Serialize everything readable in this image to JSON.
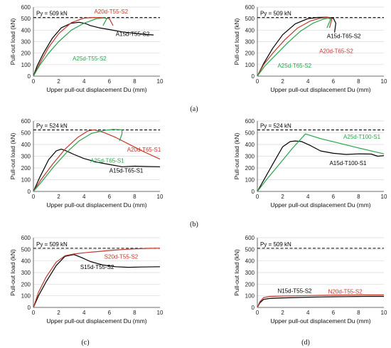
{
  "colors": {
    "black": "#000000",
    "red": "#c0392b",
    "green": "#27a44a",
    "grid": "#d9d9d9"
  },
  "row_labels": [
    "(a)",
    "(b)",
    "(c)",
    "(d)"
  ],
  "chart_data": [
    {
      "type": "line",
      "xlabel": "Upper pull-out displacement Du (mm)",
      "ylabel": "Pull-out load (kN)",
      "xlim": [
        0,
        10
      ],
      "ylim": [
        0,
        600
      ],
      "xticks": [
        0,
        2,
        4,
        6,
        8,
        10
      ],
      "yticks": [
        0,
        100,
        200,
        300,
        400,
        500,
        600
      ],
      "grid": true,
      "py_line": {
        "value": 509,
        "label": "Py = 509 kN"
      },
      "series": [
        {
          "name": "A15d-T55-S2",
          "color": "black",
          "x": [
            0,
            0.3,
            0.8,
            1.5,
            2.2,
            3.0,
            3.6,
            4.1,
            4.5,
            5.2,
            6.0,
            7.0,
            8.0,
            9.0,
            9.5
          ],
          "y": [
            0,
            90,
            200,
            330,
            420,
            460,
            468,
            458,
            440,
            420,
            405,
            385,
            372,
            362,
            358
          ]
        },
        {
          "name": "A20d-T55-S2",
          "color": "red",
          "x": [
            0,
            0.5,
            1.2,
            2.0,
            3.0,
            4.0,
            4.8,
            5.5,
            6.0,
            6.3
          ],
          "y": [
            0,
            110,
            250,
            370,
            465,
            505,
            510,
            508,
            500,
            440
          ]
        },
        {
          "name": "A25d-T55-S2",
          "color": "green",
          "x": [
            0,
            0.5,
            1.2,
            2.0,
            3.0,
            4.0,
            5.0,
            5.6,
            5.8,
            5.5
          ],
          "y": [
            0,
            95,
            200,
            300,
            400,
            460,
            500,
            507,
            500,
            440
          ]
        }
      ],
      "labels": [
        {
          "text": "A15d-T55-S2",
          "color": "black",
          "x": 6.5,
          "y": 350
        },
        {
          "text": "A20d-T55-S2",
          "color": "red",
          "x": 4.8,
          "y": 545
        },
        {
          "text": "A25d-T55-S2",
          "color": "green",
          "x": 3.1,
          "y": 135
        }
      ]
    },
    {
      "type": "line",
      "xlabel": "Upper pull-out displacement Du (mm)",
      "ylabel": "Pull-out load (kN)",
      "xlim": [
        0,
        10
      ],
      "ylim": [
        0,
        600
      ],
      "xticks": [
        0,
        2,
        4,
        6,
        8,
        10
      ],
      "yticks": [
        0,
        100,
        200,
        300,
        400,
        500,
        600
      ],
      "grid": true,
      "py_line": {
        "value": 509,
        "label": "Py = 509 kN"
      },
      "series": [
        {
          "name": "A15d-T65-S2",
          "color": "black",
          "x": [
            0,
            0.5,
            1.2,
            2.0,
            3.0,
            4.0,
            4.8,
            5.5,
            6.0,
            6.2,
            6.1
          ],
          "y": [
            0,
            110,
            240,
            360,
            455,
            500,
            510,
            512,
            505,
            460,
            380
          ]
        },
        {
          "name": "A20d-T65-S2",
          "color": "red",
          "x": [
            0,
            0.5,
            1.3,
            2.2,
            3.2,
            4.2,
            5.0,
            5.6,
            5.9,
            5.7
          ],
          "y": [
            0,
            100,
            210,
            320,
            420,
            480,
            505,
            510,
            500,
            420
          ]
        },
        {
          "name": "A25d-T65-S2",
          "color": "green",
          "x": [
            0,
            0.6,
            1.5,
            2.4,
            3.4,
            4.4,
            5.2,
            5.6,
            5.8,
            5.5
          ],
          "y": [
            0,
            90,
            190,
            290,
            390,
            460,
            495,
            505,
            495,
            420
          ]
        }
      ],
      "labels": [
        {
          "text": "A15d-T65-S2",
          "color": "black",
          "x": 5.5,
          "y": 330
        },
        {
          "text": "A20d-T65-S2",
          "color": "red",
          "x": 4.9,
          "y": 200
        },
        {
          "text": "A25d-T65-S2",
          "color": "green",
          "x": 1.6,
          "y": 75
        }
      ]
    },
    {
      "type": "line",
      "xlabel": "Upper pull-out displacement Du (mm)",
      "ylabel": "Pull-out load (kN)",
      "xlim": [
        0,
        10
      ],
      "ylim": [
        0,
        600
      ],
      "xticks": [
        0,
        2,
        4,
        6,
        8,
        10
      ],
      "yticks": [
        0,
        100,
        200,
        300,
        400,
        500,
        600
      ],
      "grid": true,
      "py_line": {
        "value": 524,
        "label": "Py = 524 kN"
      },
      "series": [
        {
          "name": "A15d-T65-S1",
          "color": "black",
          "x": [
            0,
            0.5,
            1.2,
            1.8,
            2.2,
            2.6,
            3.2,
            4.0,
            5.0,
            6.0,
            7.0,
            8.0,
            9.0,
            10.0
          ],
          "y": [
            0,
            120,
            270,
            345,
            360,
            345,
            315,
            280,
            250,
            230,
            210,
            215,
            212,
            210
          ]
        },
        {
          "name": "A20d-T65-S1",
          "color": "red",
          "x": [
            0,
            0.6,
            1.5,
            2.5,
            3.5,
            4.3,
            4.8,
            5.5,
            6.5,
            7.5,
            8.5,
            9.5,
            10.0
          ],
          "y": [
            0,
            100,
            230,
            360,
            460,
            515,
            525,
            505,
            460,
            405,
            350,
            300,
            275
          ]
        },
        {
          "name": "A25d-T65-S1",
          "color": "green",
          "x": [
            0,
            0.7,
            1.6,
            2.6,
            3.6,
            4.6,
            5.6,
            6.3,
            7.0,
            7.0,
            6.8
          ],
          "y": [
            0,
            90,
            210,
            330,
            430,
            495,
            520,
            528,
            525,
            490,
            430
          ]
        }
      ],
      "labels": [
        {
          "text": "A15d-T65-S1",
          "color": "black",
          "x": 6.0,
          "y": 160
        },
        {
          "text": "A20d-T65-S1",
          "color": "red",
          "x": 7.4,
          "y": 340
        },
        {
          "text": "A25d-T65-S1",
          "color": "green",
          "x": 4.5,
          "y": 245
        }
      ]
    },
    {
      "type": "line",
      "xlabel": "Upper pull-out displacement Du (mm)",
      "ylabel": "Pull-out load (kN)",
      "xlim": [
        0,
        10
      ],
      "ylim": [
        0,
        600
      ],
      "xticks": [
        0,
        2,
        4,
        6,
        8,
        10
      ],
      "yticks": [
        0,
        100,
        200,
        300,
        400,
        500,
        600
      ],
      "grid": true,
      "py_line": {
        "value": 524,
        "label": "Py = 524 kN"
      },
      "series": [
        {
          "name": "A15d-T100-S1",
          "color": "black",
          "x": [
            0,
            0.5,
            1.2,
            2.0,
            2.6,
            3.0,
            3.5,
            4.2,
            5.0,
            6.0,
            7.0,
            8.0,
            9.0,
            9.5,
            10.0
          ],
          "y": [
            0,
            95,
            230,
            380,
            425,
            430,
            425,
            390,
            345,
            325,
            315,
            320,
            318,
            300,
            305
          ]
        },
        {
          "name": "A25d-T100-S1",
          "color": "green",
          "x": [
            0,
            0.8,
            1.8,
            2.8,
            3.8,
            5.0,
            6.5,
            8.0,
            9.0,
            10.0
          ],
          "y": [
            0,
            110,
            240,
            370,
            490,
            450,
            410,
            370,
            345,
            320
          ]
        }
      ],
      "labels": [
        {
          "text": "A15d-T100-S1",
          "color": "black",
          "x": 5.7,
          "y": 225
        },
        {
          "text": "A25d-T100-S1",
          "color": "green",
          "x": 6.8,
          "y": 448
        }
      ]
    },
    {
      "type": "line",
      "xlabel": "Upper pull-out displacement Du (mm)",
      "ylabel": "Pull-out load (kN)",
      "xlim": [
        0,
        10
      ],
      "ylim": [
        0,
        600
      ],
      "xticks": [
        0,
        2,
        4,
        6,
        8,
        10
      ],
      "yticks": [
        0,
        100,
        200,
        300,
        400,
        500,
        600
      ],
      "grid": true,
      "py_line": {
        "value": 509,
        "label": "Py = 509 kN"
      },
      "series": [
        {
          "name": "S15d-T55-S2",
          "color": "black",
          "x": [
            0,
            0.4,
            1.0,
            1.8,
            2.5,
            3.2,
            3.8,
            4.5,
            5.5,
            6.5,
            7.5,
            8.5,
            10.0
          ],
          "y": [
            0,
            100,
            220,
            360,
            440,
            455,
            430,
            395,
            365,
            350,
            345,
            348,
            350
          ]
        },
        {
          "name": "S20d-T55-S2",
          "color": "red",
          "x": [
            0,
            0.4,
            1.0,
            1.8,
            2.5,
            3.2,
            4.0,
            5.0,
            6.0,
            7.0,
            8.0,
            9.0,
            10.0
          ],
          "y": [
            0,
            130,
            260,
            390,
            445,
            460,
            470,
            480,
            490,
            498,
            504,
            508,
            510
          ]
        }
      ],
      "labels": [
        {
          "text": "S15d-T55-S2",
          "color": "black",
          "x": 3.7,
          "y": 330
        },
        {
          "text": "S20d-T55-S2",
          "color": "red",
          "x": 5.6,
          "y": 420
        }
      ]
    },
    {
      "type": "line",
      "xlabel": "Upper pull-out displacement Du (mm)",
      "ylabel": "Pull-out load (kN)",
      "xlim": [
        0,
        10
      ],
      "ylim": [
        0,
        600
      ],
      "xticks": [
        0,
        2,
        4,
        6,
        8,
        10
      ],
      "yticks": [
        0,
        100,
        200,
        300,
        400,
        500,
        600
      ],
      "grid": true,
      "py_line": {
        "value": 509,
        "label": "Py = 509 kN"
      },
      "series": [
        {
          "name": "N15d-T55-S2",
          "color": "black",
          "x": [
            0,
            0.2,
            0.5,
            1.0,
            2.0,
            3.0,
            4.0,
            5.0,
            6.0,
            7.0,
            8.0,
            9.0,
            10.0
          ],
          "y": [
            0,
            40,
            70,
            78,
            82,
            85,
            88,
            90,
            92,
            93,
            94,
            95,
            95
          ]
        },
        {
          "name": "N20d-T55-S2",
          "color": "red",
          "x": [
            0,
            0.2,
            0.5,
            1.0,
            2.0,
            3.0,
            4.0,
            5.0,
            6.0,
            7.0,
            8.0,
            9.0,
            10.0
          ],
          "y": [
            0,
            50,
            85,
            95,
            98,
            100,
            102,
            104,
            106,
            107,
            108,
            108,
            108
          ]
        }
      ],
      "labels": [
        {
          "text": "N15d-T55-S2",
          "color": "black",
          "x": 1.6,
          "y": 125
        },
        {
          "text": "N20d-T55-S2",
          "color": "red",
          "x": 5.6,
          "y": 120
        }
      ]
    }
  ]
}
